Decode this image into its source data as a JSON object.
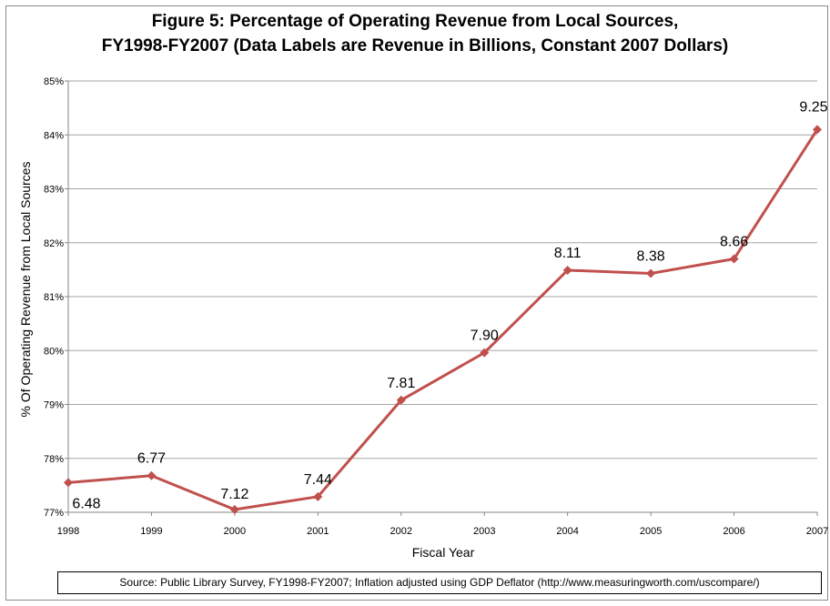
{
  "chart_data": {
    "type": "line",
    "title_line1": "Figure 5: Percentage of Operating Revenue from Local Sources,",
    "title_line2": "FY1998-FY2007 (Data Labels are Revenue in Billions, Constant 2007 Dollars)",
    "xlabel": "Fiscal Year",
    "ylabel": "% Of Operating Revenue from Local Sources",
    "categories": [
      "1998",
      "1999",
      "2000",
      "2001",
      "2002",
      "2003",
      "2004",
      "2005",
      "2006",
      "2007"
    ],
    "values": [
      77.55,
      77.68,
      77.05,
      77.29,
      79.08,
      79.96,
      81.49,
      81.43,
      81.7,
      84.1
    ],
    "data_labels": [
      "6.48",
      "6.77",
      "7.12",
      "7.44",
      "7.81",
      "7.90",
      "8.11",
      "8.38",
      "8.66",
      "9.25"
    ],
    "y_ticks": [
      "77%",
      "78%",
      "79%",
      "80%",
      "81%",
      "82%",
      "83%",
      "84%",
      "85%"
    ],
    "ylim": [
      77,
      85
    ],
    "grid": true,
    "line_color": "#c0504d",
    "grid_color": "#a6a6a6"
  },
  "source_note": "Source: Public Library Survey, FY1998-FY2007;   Inflation adjusted using GDP Deflator (http://www.measuringworth.com/uscompare/)"
}
